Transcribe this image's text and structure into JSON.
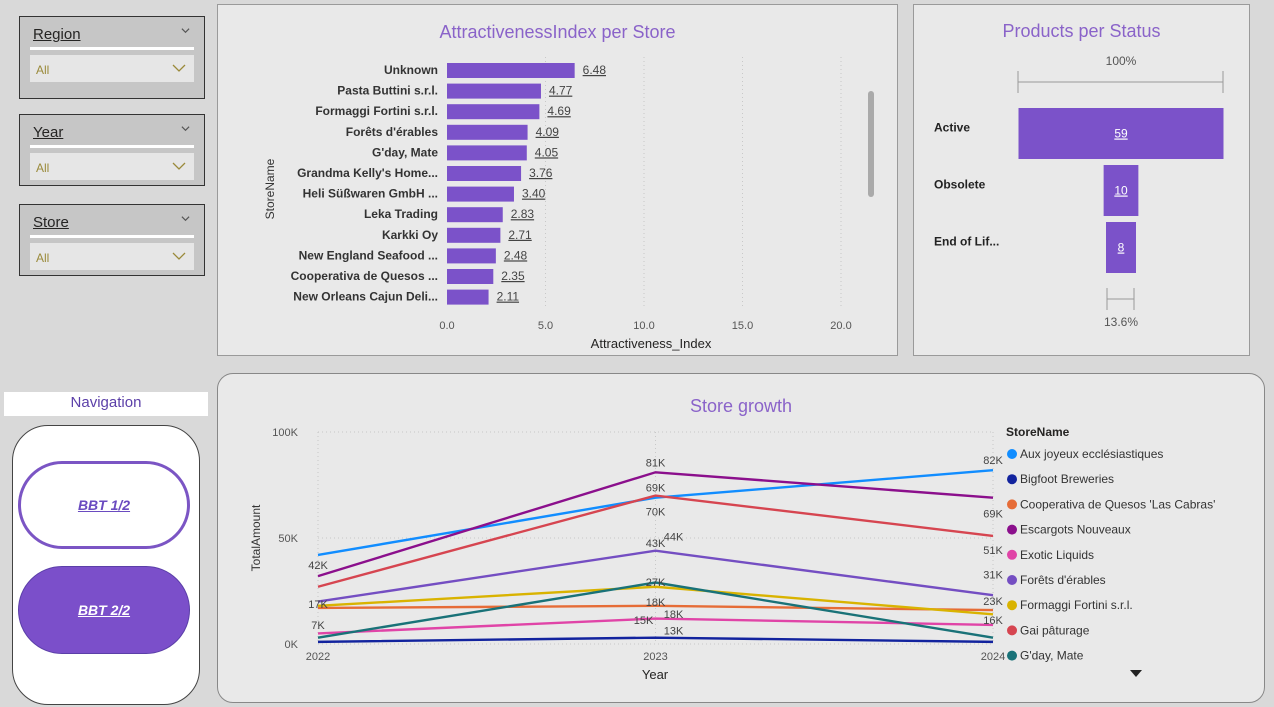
{
  "slicers": [
    {
      "title": "Region",
      "value": "All"
    },
    {
      "title": "Year",
      "value": "All"
    },
    {
      "title": "Store",
      "value": "All"
    }
  ],
  "attractiveness": {
    "title": "AttractivenessIndex per Store",
    "ylabel": "StoreName",
    "xlabel": "Attractiveness_Index",
    "ticks": [
      "0.0",
      "5.0",
      "10.0",
      "15.0",
      "20.0"
    ]
  },
  "status": {
    "title": "Products per Status",
    "top_label": "100%",
    "bottom_label": "13.6%"
  },
  "growth": {
    "title": "Store growth",
    "xlabel": "Year",
    "ylabel": "TotalAmount",
    "legend_title": "StoreName",
    "y_ticks": [
      "100K",
      "50K",
      "0K"
    ],
    "x_ticks": [
      "2022",
      "2023",
      "2024"
    ]
  },
  "navigation": {
    "title": "Navigation",
    "buttons": [
      "BBT 1/2",
      "BBT 2/2"
    ]
  },
  "chart_data": [
    {
      "type": "bar",
      "orientation": "horizontal",
      "title": "AttractivenessIndex per Store",
      "xlabel": "Attractiveness_Index",
      "ylabel": "StoreName",
      "xlim": [
        0,
        20
      ],
      "color": "#7b52c9",
      "categories": [
        "Unknown",
        "Pasta Buttini s.r.l.",
        "Formaggi Fortini s.r.l.",
        "Forêts d'érables",
        "G'day, Mate",
        "Grandma Kelly's Home...",
        "Heli Süßwaren GmbH ...",
        "Leka Trading",
        "Karkki Oy",
        "New England Seafood ...",
        "Cooperativa de Quesos ...",
        "New Orleans Cajun Deli..."
      ],
      "values": [
        6.48,
        4.77,
        4.69,
        4.09,
        4.05,
        3.76,
        3.4,
        2.83,
        2.71,
        2.48,
        2.35,
        2.11
      ],
      "labels": [
        "6.48",
        "4.77",
        "4.69",
        "4.09",
        "4.05",
        "3.76",
        "3.40",
        "2.83",
        "2.71",
        "2.48",
        "2.35",
        "2.11"
      ]
    },
    {
      "type": "bar",
      "subtype": "funnel",
      "title": "Products per Status",
      "color": "#7b52c9",
      "categories": [
        "Active",
        "Obsolete",
        "End of Lif..."
      ],
      "values": [
        59,
        10,
        8
      ],
      "labels": [
        "59",
        "10",
        "8"
      ]
    },
    {
      "type": "line",
      "title": "Store growth",
      "xlabel": "Year",
      "ylabel": "TotalAmount",
      "x": [
        "2022",
        "2023",
        "2024"
      ],
      "ylim": [
        0,
        100000
      ],
      "series": [
        {
          "name": "Aux joyeux ecclésiastiques",
          "color": "#118dff",
          "values": [
            42000,
            69000,
            82000
          ]
        },
        {
          "name": "Bigfoot Breweries",
          "color": "#12239e",
          "values": [
            1000,
            3000,
            1000
          ]
        },
        {
          "name": "Cooperativa de Quesos 'Las Cabras'",
          "color": "#e66c37",
          "values": [
            17000,
            18000,
            16000
          ]
        },
        {
          "name": "Escargots Nouveaux",
          "color": "#8b0f8c",
          "values": [
            32000,
            81000,
            69000
          ]
        },
        {
          "name": "Exotic Liquids",
          "color": "#e044a7",
          "values": [
            5000,
            12000,
            9000
          ]
        },
        {
          "name": "Forêts d'érables",
          "color": "#744ec2",
          "values": [
            20000,
            44000,
            23000
          ]
        },
        {
          "name": "Formaggi Fortini s.r.l.",
          "color": "#d9b300",
          "values": [
            18000,
            27000,
            14000
          ]
        },
        {
          "name": "Gai pâturage",
          "color": "#d64550",
          "values": [
            27000,
            70000,
            51000
          ]
        },
        {
          "name": "G'day, Mate",
          "color": "#197278",
          "values": [
            3000,
            29000,
            3000
          ]
        }
      ],
      "data_labels": [
        "81K",
        "69K",
        "70K",
        "43K",
        "44K",
        "27K",
        "18K",
        "18K",
        "15K",
        "13K",
        "42K",
        "17K",
        "7K",
        "82K",
        "69K",
        "51K",
        "31K",
        "23K",
        "16K"
      ],
      "legend": "right"
    }
  ]
}
